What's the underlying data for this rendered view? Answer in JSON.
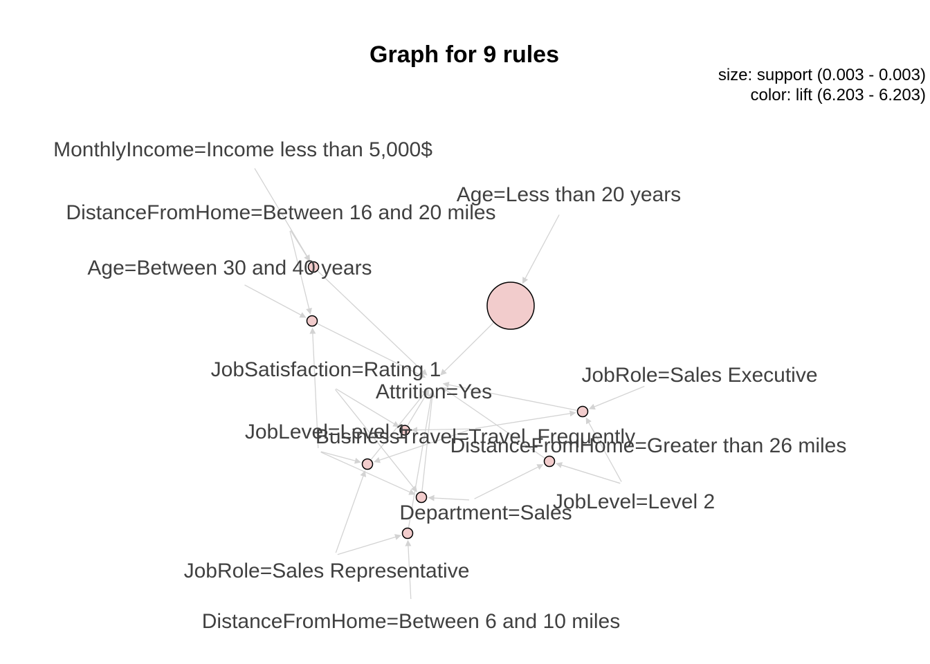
{
  "title": "Graph for 9 rules",
  "legend": {
    "size": "size: support (0.003 - 0.003)",
    "color": "color: lift (6.203 - 6.203)"
  },
  "colors": {
    "rule_fill": "#f2cccc",
    "rule_stroke": "#000000",
    "edge": "#d3d3d3",
    "label_text": "#404040"
  },
  "items": [
    {
      "id": "income",
      "label": "MonthlyIncome=Income less than 5,000$"
    },
    {
      "id": "age20",
      "label": "Age=Less than 20 years"
    },
    {
      "id": "dist16",
      "label": "DistanceFromHome=Between 16 and 20 miles"
    },
    {
      "id": "age30",
      "label": "Age=Between 30 and 40 years"
    },
    {
      "id": "jobsat",
      "label": "JobSatisfaction=Rating 1"
    },
    {
      "id": "attr",
      "label": "Attrition=Yes"
    },
    {
      "id": "salesexec",
      "label": "JobRole=Sales Executive"
    },
    {
      "id": "level1",
      "label": "JobLevel=Level 1"
    },
    {
      "id": "travel",
      "label": "BusinessTravel=Travel_Frequently"
    },
    {
      "id": "dist26",
      "label": "DistanceFromHome=Greater than 26 miles"
    },
    {
      "id": "level2",
      "label": "JobLevel=Level 2"
    },
    {
      "id": "dept",
      "label": "Department=Sales"
    },
    {
      "id": "salesrep",
      "label": "JobRole=Sales Representative"
    },
    {
      "id": "dist6",
      "label": "DistanceFromHome=Between 6 and 10 miles"
    }
  ],
  "rules": [
    {
      "id": "r1",
      "support": 0.003,
      "lift": 6.203
    },
    {
      "id": "r2",
      "support": 0.003,
      "lift": 6.203
    },
    {
      "id": "r3",
      "support": 0.003,
      "lift": 6.203
    },
    {
      "id": "r4",
      "support": 0.003,
      "lift": 6.203
    },
    {
      "id": "r5",
      "support": 0.003,
      "lift": 6.203
    },
    {
      "id": "r6",
      "support": 0.003,
      "lift": 6.203
    },
    {
      "id": "r7",
      "support": 0.003,
      "lift": 6.203
    },
    {
      "id": "r8",
      "support": 0.003,
      "lift": 6.203
    },
    {
      "id": "r9",
      "support": 0.003,
      "lift": 6.203
    }
  ],
  "edges": [
    {
      "from": "income",
      "to": "r1"
    },
    {
      "from": "dist16",
      "to": "r1"
    },
    {
      "from": "r1",
      "to": "attr"
    },
    {
      "from": "dist16",
      "to": "r2"
    },
    {
      "from": "age30",
      "to": "r2"
    },
    {
      "from": "level1",
      "to": "r2"
    },
    {
      "from": "r2",
      "to": "attr"
    },
    {
      "from": "age20",
      "to": "r3"
    },
    {
      "from": "r3",
      "to": "attr"
    },
    {
      "from": "jobsat",
      "to": "r4"
    },
    {
      "from": "travel",
      "to": "r4"
    },
    {
      "from": "r4",
      "to": "attr"
    },
    {
      "from": "level1",
      "to": "r5"
    },
    {
      "from": "salesrep",
      "to": "r5"
    },
    {
      "from": "travel",
      "to": "r5"
    },
    {
      "from": "r5",
      "to": "attr"
    },
    {
      "from": "salesexec",
      "to": "r6"
    },
    {
      "from": "travel",
      "to": "r6"
    },
    {
      "from": "level2",
      "to": "r6"
    },
    {
      "from": "r6",
      "to": "attr"
    },
    {
      "from": "dist26",
      "to": "r7"
    },
    {
      "from": "dept",
      "to": "r7"
    },
    {
      "from": "level2",
      "to": "r7"
    },
    {
      "from": "r7",
      "to": "attr"
    },
    {
      "from": "jobsat",
      "to": "r8"
    },
    {
      "from": "dept",
      "to": "r8"
    },
    {
      "from": "level1",
      "to": "r8"
    },
    {
      "from": "r8",
      "to": "attr"
    },
    {
      "from": "salesrep",
      "to": "r9"
    },
    {
      "from": "dist6",
      "to": "r9"
    },
    {
      "from": "r9",
      "to": "attr"
    }
  ]
}
